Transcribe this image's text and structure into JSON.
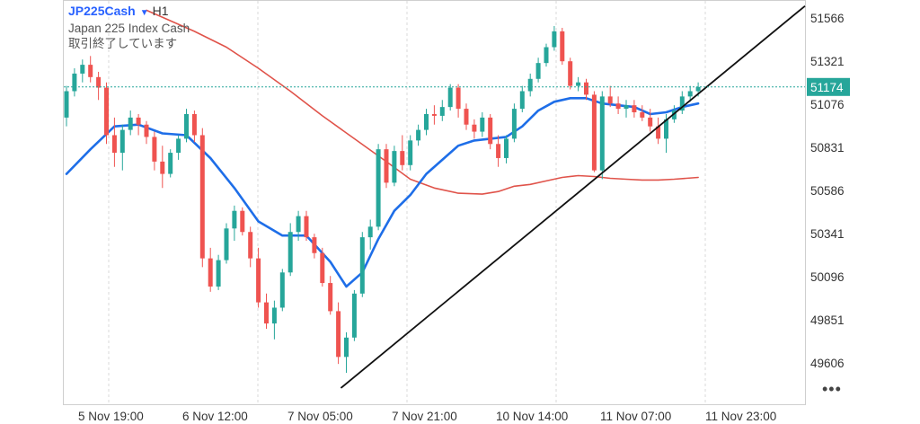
{
  "header": {
    "symbol": "JP225Cash",
    "timeframe": "H1",
    "name": "Japan 225 Index Cash",
    "status": "取引終了しています"
  },
  "menu_label": "•••",
  "colors": {
    "up": "#26a69a",
    "down": "#ef5350",
    "ma_fast": "#1e6ee8",
    "ma_slow": "#e0534a",
    "trendline": "#111111",
    "price_tag": "#26a69a",
    "grid": "#d9d9d9"
  },
  "chart_data": {
    "type": "candlestick",
    "title": "JP225Cash H1",
    "ylim": [
      49400,
      51650
    ],
    "y_ticks": [
      49606,
      49851,
      50096,
      50341,
      50586,
      50831,
      51076,
      51321,
      51566
    ],
    "x_tick_labels": [
      "5 Nov 19:00",
      "6 Nov 12:00",
      "7 Nov 05:00",
      "7 Nov 21:00",
      "10 Nov 14:00",
      "11 Nov 07:00",
      "11 Nov 23:00"
    ],
    "last_price": 51174,
    "candles": [
      [
        51000,
        51180,
        50950,
        51150
      ],
      [
        51150,
        51280,
        51120,
        51250
      ],
      [
        51250,
        51330,
        51200,
        51300
      ],
      [
        51300,
        51350,
        51200,
        51230
      ],
      [
        51230,
        51260,
        51100,
        51170
      ],
      [
        51170,
        51200,
        50850,
        50900
      ],
      [
        50900,
        51000,
        50720,
        50800
      ],
      [
        50800,
        50960,
        50700,
        50930
      ],
      [
        50930,
        51040,
        50900,
        51000
      ],
      [
        51000,
        51020,
        50900,
        50960
      ],
      [
        50960,
        50980,
        50850,
        50890
      ],
      [
        50890,
        50920,
        50700,
        50750
      ],
      [
        50750,
        50840,
        50600,
        50680
      ],
      [
        50680,
        50820,
        50660,
        50800
      ],
      [
        50800,
        50900,
        50760,
        50880
      ],
      [
        50880,
        51050,
        50860,
        51020
      ],
      [
        51020,
        51040,
        50860,
        50900
      ],
      [
        50900,
        50940,
        50150,
        50200
      ],
      [
        50200,
        50260,
        50010,
        50040
      ],
      [
        50040,
        50220,
        50020,
        50190
      ],
      [
        50190,
        50400,
        50170,
        50370
      ],
      [
        50370,
        50500,
        50300,
        50470
      ],
      [
        50470,
        50490,
        50330,
        50350
      ],
      [
        50350,
        50380,
        50150,
        50200
      ],
      [
        50200,
        50260,
        49920,
        49950
      ],
      [
        49950,
        50000,
        49800,
        49830
      ],
      [
        49830,
        49960,
        49740,
        49920
      ],
      [
        49920,
        50140,
        49900,
        50120
      ],
      [
        50120,
        50400,
        50100,
        50350
      ],
      [
        50350,
        50470,
        50300,
        50440
      ],
      [
        50440,
        50470,
        50300,
        50320
      ],
      [
        50320,
        50340,
        50200,
        50230
      ],
      [
        50230,
        50260,
        50040,
        50060
      ],
      [
        50060,
        50100,
        49880,
        49900
      ],
      [
        49900,
        49950,
        49600,
        49640
      ],
      [
        49640,
        49780,
        49550,
        49750
      ],
      [
        49750,
        50020,
        49730,
        50000
      ],
      [
        50000,
        50350,
        49980,
        50320
      ],
      [
        50320,
        50420,
        50250,
        50380
      ],
      [
        50380,
        50850,
        50360,
        50820
      ],
      [
        50820,
        50850,
        50600,
        50630
      ],
      [
        50630,
        50840,
        50610,
        50810
      ],
      [
        50810,
        50900,
        50700,
        50730
      ],
      [
        50730,
        50900,
        50700,
        50870
      ],
      [
        50870,
        50960,
        50840,
        50930
      ],
      [
        50930,
        51050,
        50900,
        51020
      ],
      [
        51020,
        51070,
        50960,
        51010
      ],
      [
        51010,
        51100,
        50980,
        51060
      ],
      [
        51060,
        51190,
        51040,
        51170
      ],
      [
        51170,
        51190,
        51000,
        51050
      ],
      [
        51050,
        51080,
        50930,
        50960
      ],
      [
        50960,
        50990,
        50880,
        50920
      ],
      [
        50920,
        51030,
        50890,
        51000
      ],
      [
        51000,
        51020,
        50820,
        50850
      ],
      [
        50850,
        50900,
        50720,
        50770
      ],
      [
        50770,
        50900,
        50740,
        50880
      ],
      [
        50880,
        51080,
        50860,
        51050
      ],
      [
        51050,
        51180,
        51030,
        51150
      ],
      [
        51150,
        51250,
        51120,
        51220
      ],
      [
        51220,
        51340,
        51200,
        51310
      ],
      [
        51310,
        51420,
        51290,
        51400
      ],
      [
        51400,
        51520,
        51380,
        51490
      ],
      [
        51490,
        51510,
        51300,
        51320
      ],
      [
        51320,
        51340,
        51160,
        51180
      ],
      [
        51180,
        51230,
        51150,
        51200
      ],
      [
        51200,
        51220,
        51100,
        51130
      ],
      [
        51130,
        51150,
        50690,
        50700
      ],
      [
        50700,
        51150,
        50650,
        51120
      ],
      [
        51120,
        51180,
        51060,
        51080
      ],
      [
        51080,
        51120,
        51020,
        51050
      ],
      [
        51050,
        51100,
        51000,
        51070
      ],
      [
        51070,
        51100,
        51000,
        51030
      ],
      [
        51030,
        51070,
        50980,
        51000
      ],
      [
        51000,
        51050,
        50920,
        50950
      ],
      [
        50950,
        51000,
        50850,
        50880
      ],
      [
        50880,
        51020,
        50800,
        50990
      ],
      [
        50990,
        51070,
        50970,
        51040
      ],
      [
        51040,
        51150,
        51020,
        51120
      ],
      [
        51120,
        51180,
        51090,
        51150
      ],
      [
        51150,
        51200,
        51120,
        51174
      ]
    ],
    "ma_fast": [
      [
        0,
        50680
      ],
      [
        3,
        50820
      ],
      [
        6,
        50950
      ],
      [
        9,
        50960
      ],
      [
        12,
        50910
      ],
      [
        15,
        50900
      ],
      [
        18,
        50770
      ],
      [
        21,
        50600
      ],
      [
        24,
        50410
      ],
      [
        27,
        50330
      ],
      [
        30,
        50330
      ],
      [
        33,
        50180
      ],
      [
        35,
        50040
      ],
      [
        37,
        50120
      ],
      [
        39,
        50310
      ],
      [
        41,
        50470
      ],
      [
        43,
        50560
      ],
      [
        45,
        50680
      ],
      [
        47,
        50760
      ],
      [
        49,
        50840
      ],
      [
        51,
        50870
      ],
      [
        53,
        50880
      ],
      [
        55,
        50890
      ],
      [
        57,
        50950
      ],
      [
        59,
        51040
      ],
      [
        61,
        51090
      ],
      [
        63,
        51110
      ],
      [
        65,
        51110
      ],
      [
        67,
        51080
      ],
      [
        69,
        51070
      ],
      [
        71,
        51060
      ],
      [
        73,
        51020
      ],
      [
        75,
        51030
      ],
      [
        77,
        51060
      ],
      [
        79,
        51080
      ]
    ],
    "ma_slow": [
      [
        10,
        51610
      ],
      [
        16,
        51490
      ],
      [
        20,
        51400
      ],
      [
        24,
        51280
      ],
      [
        28,
        51150
      ],
      [
        32,
        51010
      ],
      [
        36,
        50880
      ],
      [
        40,
        50750
      ],
      [
        43,
        50650
      ],
      [
        46,
        50600
      ],
      [
        49,
        50570
      ],
      [
        52,
        50565
      ],
      [
        54,
        50580
      ],
      [
        56,
        50610
      ],
      [
        58,
        50620
      ],
      [
        60,
        50640
      ],
      [
        62,
        50660
      ],
      [
        64,
        50670
      ],
      [
        66,
        50665
      ],
      [
        68,
        50655
      ],
      [
        70,
        50650
      ],
      [
        72,
        50645
      ],
      [
        74,
        50645
      ],
      [
        76,
        50650
      ],
      [
        79,
        50660
      ]
    ],
    "trendline": [
      [
        36,
        49550
      ],
      [
        79,
        51430
      ]
    ]
  }
}
